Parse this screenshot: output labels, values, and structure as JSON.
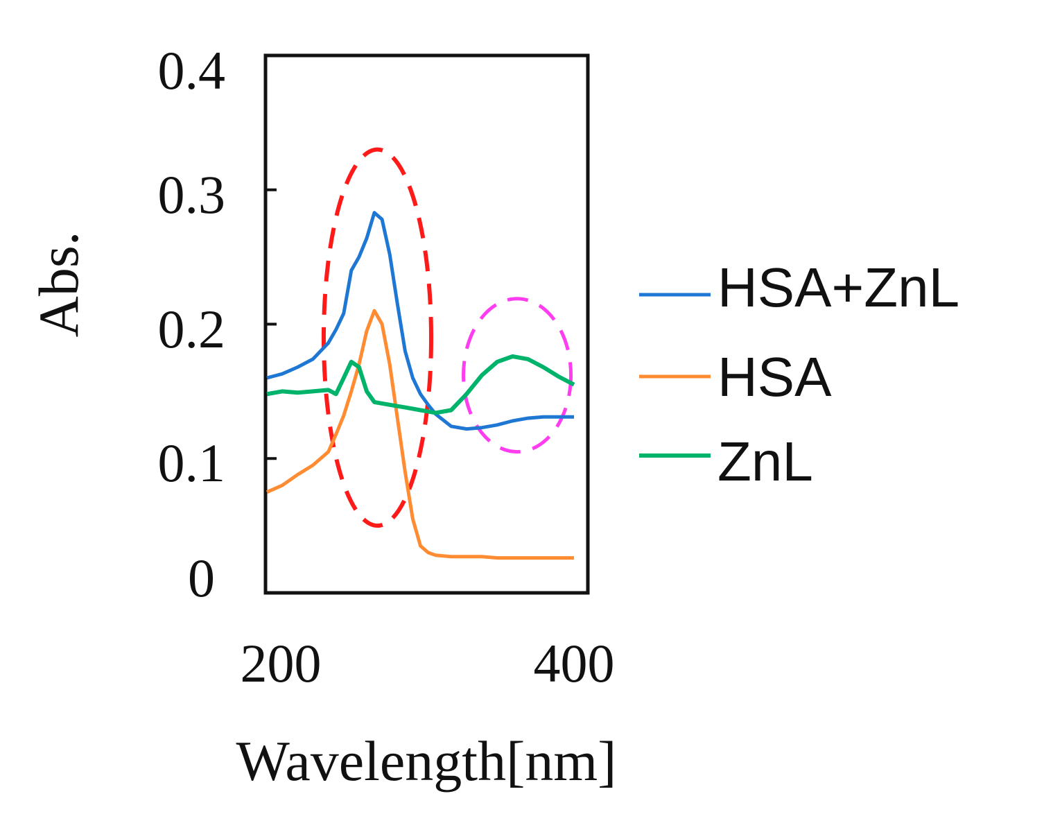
{
  "chart_data": {
    "type": "line",
    "xlabel": "Wavelength[nm]",
    "ylabel": "Abs.",
    "xlim": [
      200,
      400
    ],
    "ylim": [
      0,
      0.4
    ],
    "x_ticks": [
      "200",
      "400"
    ],
    "y_ticks": [
      "0",
      "0.1",
      "0.2",
      "0.3",
      "0.4"
    ],
    "legend_position": "right",
    "colors": {
      "HSA+ZnL": "#1f77d4",
      "HSA": "#ff8c32",
      "ZnL": "#00b36b",
      "highlight_red": "#ff1a1a",
      "highlight_magenta": "#ff3df0",
      "axis": "#111111"
    },
    "series": [
      {
        "name": "HSA+ZnL",
        "x": [
          200,
          210,
          220,
          230,
          240,
          245,
          250,
          255,
          260,
          265,
          270,
          275,
          280,
          285,
          290,
          295,
          300,
          305,
          310,
          320,
          330,
          340,
          350,
          360,
          370,
          380,
          390,
          400
        ],
        "y": [
          0.16,
          0.163,
          0.168,
          0.174,
          0.186,
          0.196,
          0.208,
          0.24,
          0.25,
          0.264,
          0.283,
          0.278,
          0.252,
          0.215,
          0.18,
          0.16,
          0.148,
          0.14,
          0.133,
          0.124,
          0.122,
          0.123,
          0.125,
          0.128,
          0.13,
          0.131,
          0.131,
          0.131
        ]
      },
      {
        "name": "HSA",
        "x": [
          200,
          210,
          220,
          230,
          240,
          245,
          250,
          255,
          260,
          265,
          270,
          275,
          280,
          285,
          290,
          295,
          300,
          305,
          310,
          320,
          330,
          340,
          350,
          360,
          370,
          380,
          390,
          400
        ],
        "y": [
          0.075,
          0.08,
          0.088,
          0.095,
          0.105,
          0.118,
          0.132,
          0.15,
          0.17,
          0.195,
          0.21,
          0.2,
          0.17,
          0.13,
          0.09,
          0.055,
          0.035,
          0.03,
          0.028,
          0.027,
          0.027,
          0.027,
          0.026,
          0.026,
          0.026,
          0.026,
          0.026,
          0.026
        ]
      },
      {
        "name": "ZnL",
        "x": [
          200,
          210,
          220,
          230,
          240,
          245,
          250,
          255,
          260,
          265,
          270,
          280,
          290,
          300,
          310,
          320,
          330,
          340,
          350,
          360,
          370,
          380,
          390,
          400
        ],
        "y": [
          0.148,
          0.15,
          0.149,
          0.15,
          0.151,
          0.148,
          0.16,
          0.172,
          0.168,
          0.15,
          0.142,
          0.14,
          0.138,
          0.136,
          0.134,
          0.136,
          0.148,
          0.162,
          0.172,
          0.176,
          0.174,
          0.168,
          0.161,
          0.155
        ]
      }
    ],
    "annotations": [
      {
        "shape": "dashed-ellipse",
        "color": "red",
        "cx": 272,
        "cy": 0.19,
        "rx": 35,
        "ry": 0.14
      },
      {
        "shape": "dashed-ellipse",
        "color": "magenta",
        "cx": 363,
        "cy": 0.162,
        "rx": 35,
        "ry": 0.057
      }
    ]
  }
}
